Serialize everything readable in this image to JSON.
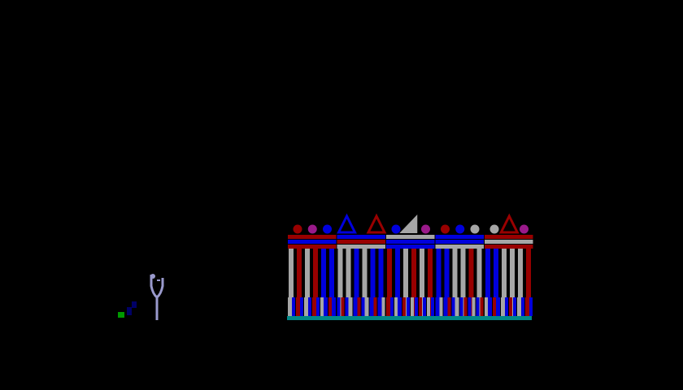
{
  "scene": {
    "background": "#000000",
    "colors": {
      "red": "#990000",
      "blue": "#0000dd",
      "grey": "#a6a6a6",
      "magenta": "#9a1a8a",
      "floor": "#008888",
      "sprite": "#9999cc",
      "grass": "#009900",
      "navy": "#000066"
    },
    "structure": {
      "modules": [
        {
          "ornaments": [
            "red-ball",
            "magenta-ball",
            "blue-ball"
          ],
          "slabs": [
            "red",
            "blue",
            "red"
          ],
          "posts": [
            "grey",
            "red",
            "grey",
            "red",
            "blue",
            "blue"
          ]
        },
        {
          "ornaments": [
            "blue-triangle",
            "red-triangle"
          ],
          "slabs": [
            "blue",
            "red",
            "grey"
          ],
          "posts": [
            "grey",
            "grey",
            "blue",
            "grey",
            "blue",
            "blue"
          ]
        },
        {
          "ornaments": [
            "blue-ball",
            "grey-wedge",
            "magenta-ball"
          ],
          "slabs": [
            "grey",
            "blue",
            "blue"
          ],
          "posts": [
            "red",
            "blue",
            "grey",
            "red",
            "grey",
            "red"
          ]
        },
        {
          "ornaments": [
            "red-ball",
            "blue-ball",
            "grey-ball"
          ],
          "slabs": [
            "blue",
            "blue",
            "grey"
          ],
          "posts": [
            "blue",
            "blue",
            "grey",
            "grey",
            "red",
            "grey"
          ]
        },
        {
          "ornaments": [
            "grey-ball",
            "red-triangle",
            "magenta-ball"
          ],
          "slabs": [
            "red",
            "grey",
            "red"
          ],
          "posts": [
            "blue",
            "blue",
            "grey",
            "grey",
            "grey",
            "red"
          ]
        }
      ]
    },
    "player": {
      "sprite": "tuning-fork-figure"
    },
    "shrub": {
      "sprite": "small-bush"
    }
  }
}
